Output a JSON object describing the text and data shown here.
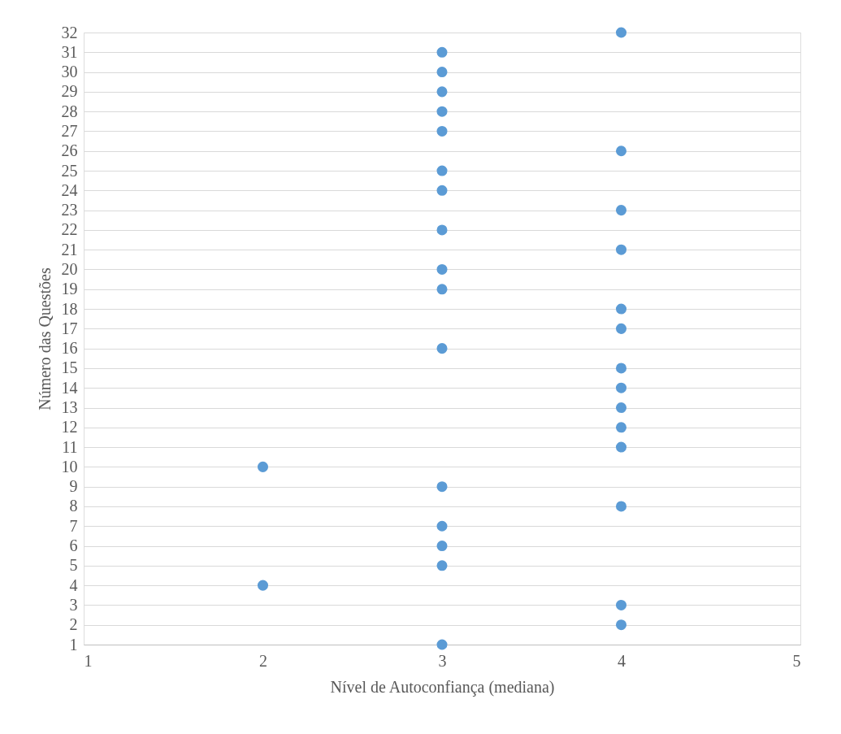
{
  "chart_data": {
    "type": "scatter",
    "xlabel": "Nível de Autoconfiança (mediana)",
    "ylabel": "Número das Questões",
    "x": [
      3,
      4,
      4,
      2,
      3,
      3,
      3,
      4,
      3,
      2,
      4,
      4,
      4,
      4,
      4,
      3,
      4,
      4,
      3,
      3,
      4,
      3,
      4,
      3,
      3,
      4,
      3,
      3,
      3,
      3,
      3,
      4
    ],
    "values": [
      1,
      2,
      3,
      4,
      5,
      6,
      7,
      8,
      9,
      10,
      11,
      12,
      13,
      14,
      15,
      16,
      17,
      18,
      19,
      20,
      21,
      22,
      23,
      24,
      25,
      26,
      27,
      28,
      29,
      30,
      31,
      32
    ],
    "color": "#5b9bd5",
    "marker": "circle",
    "xlim": [
      1,
      5
    ],
    "xticks": [
      1,
      2,
      3,
      4,
      5
    ],
    "ylim": [
      1,
      32
    ],
    "yticks": [
      1,
      2,
      3,
      4,
      5,
      6,
      7,
      8,
      9,
      10,
      11,
      12,
      13,
      14,
      15,
      16,
      17,
      18,
      19,
      20,
      21,
      22,
      23,
      24,
      25,
      26,
      27,
      28,
      29,
      30,
      31,
      32
    ],
    "grid": "y"
  }
}
